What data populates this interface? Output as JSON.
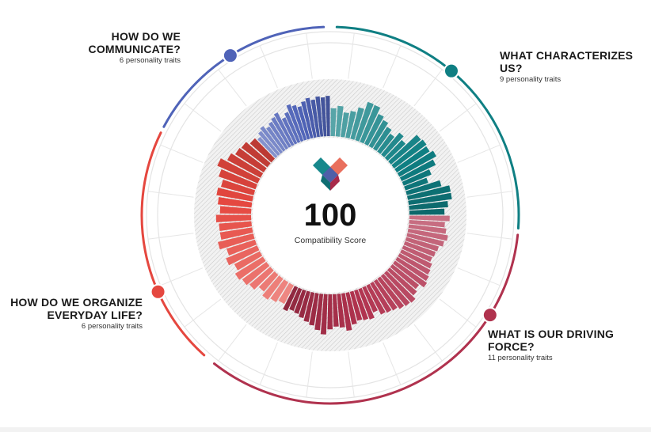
{
  "chart_data": {
    "type": "radial-bar",
    "score": "100",
    "score_label": "Compatibility Score",
    "categories": [
      {
        "title": "WHAT CHARACTERIZES\nUS?",
        "subtitle": "9 personality traits",
        "color": "#0f7f83",
        "values": [
          0.43,
          0.47,
          0.38,
          0.42,
          0.5,
          0.62,
          0.61,
          0.51,
          0.46,
          0.4,
          0.34,
          0.44,
          0.38,
          0.6,
          0.62,
          0.6,
          0.65,
          0.58,
          0.46,
          0.37,
          0.55,
          0.67,
          0.67,
          0.6,
          0.54
        ]
      },
      {
        "title": "WHAT IS OUR DRIVING\nFORCE?",
        "subtitle": "11 personality traits",
        "color": "#b0324e",
        "values": [
          0.62,
          0.55,
          0.58,
          0.62,
          0.58,
          0.52,
          0.5,
          0.48,
          0.52,
          0.54,
          0.57,
          0.6,
          0.52,
          0.56,
          0.62,
          0.6,
          0.58,
          0.54,
          0.52,
          0.5,
          0.42,
          0.5,
          0.48,
          0.46,
          0.5,
          0.58,
          0.52,
          0.5,
          0.54,
          0.62,
          0.56,
          0.5,
          0.46,
          0.42,
          0.38,
          0.36,
          0.4
        ]
      },
      {
        "title": "HOW DO WE ORGANIZE\nEVERYDAY LIFE?",
        "subtitle": "6 personality traits",
        "color": "#e5473f",
        "values": [
          0.32,
          0.36,
          0.4,
          0.34,
          0.42,
          0.46,
          0.5,
          0.44,
          0.52,
          0.46,
          0.56,
          0.5,
          0.5,
          0.54,
          0.48,
          0.52,
          0.56,
          0.52,
          0.6,
          0.68,
          0.58,
          0.52,
          0.5,
          0.44
        ]
      },
      {
        "title": "HOW DO WE\nCOMMUNICATE?",
        "subtitle": "6 personality traits",
        "color": "#4f63b8",
        "values": [
          0.4,
          0.46,
          0.5,
          0.44,
          0.48,
          0.52,
          0.56,
          0.44,
          0.5,
          0.6,
          0.56,
          0.52,
          0.58,
          0.62,
          0.58,
          0.62,
          0.6,
          0.62
        ]
      }
    ]
  },
  "colors": {
    "communicate": "#4f63b8",
    "characterizes": "#0f7f83",
    "driving": "#b0324e",
    "organize": "#e5473f"
  },
  "icons": {
    "center": "heart-logo-icon"
  }
}
